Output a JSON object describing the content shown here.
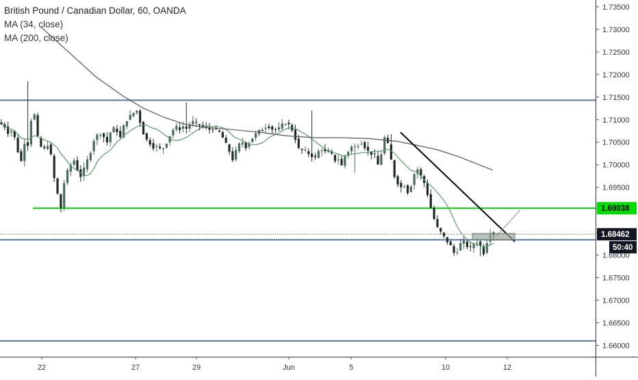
{
  "legend": {
    "title": "British Pound / Canadian Dollar, 60, OANDA",
    "ma_fast": "MA (34, close)",
    "ma_slow": "MA (200, close)"
  },
  "colors": {
    "up_candle": "#4a6b5a",
    "down_candle": "#1d2b23",
    "ma_fast": "#5a9a6a",
    "ma_slow": "#555555",
    "level_line": "#5577a0",
    "support_line": "#00dd00",
    "support_label_bg": "#00dd00",
    "price_label_bg": "#131722",
    "trend_line": "#000000"
  },
  "chart_data": {
    "type": "candlestick",
    "symbol": "GBPCAD",
    "timeframe": "60",
    "y_axis": {
      "range": [
        1.6575,
        1.7365
      ],
      "ticks": [
        "1.73500",
        "1.73000",
        "1.72500",
        "1.72000",
        "1.71500",
        "1.71000",
        "1.70500",
        "1.70000",
        "1.69500",
        "1.69000",
        "1.68500",
        "1.68000",
        "1.67500",
        "1.67000",
        "1.66500",
        "1.66000"
      ]
    },
    "x_axis": {
      "ticks": [
        "22",
        "27",
        "29",
        "Jun",
        "5",
        "10",
        "12"
      ]
    },
    "horizontal_levels": [
      1.7143,
      1.6834,
      1.661
    ],
    "support_level": {
      "value": 1.69038,
      "label": "1.69038"
    },
    "current_price": {
      "value": 1.68462,
      "label": "1.68462"
    },
    "countdown": "50:40",
    "trendline": {
      "from": [
        "Jun 7",
        1.7072
      ],
      "to": [
        "Jun 12",
        1.683
      ]
    },
    "forecast_box": {
      "low": 1.6834,
      "high": 1.6848
    },
    "close_path": [
      1.709,
      1.7085,
      1.7072,
      1.7075,
      1.706,
      1.703,
      1.7008,
      1.705,
      1.7045,
      1.71,
      1.711,
      1.706,
      1.704,
      1.7035,
      1.7045,
      1.702,
      1.697,
      1.6935,
      1.6905,
      1.696,
      1.6985,
      1.7,
      1.701,
      1.699,
      1.6975,
      1.699,
      1.701,
      1.703,
      1.7055,
      1.7065,
      1.707,
      1.7062,
      1.705,
      1.7072,
      1.708,
      1.7075,
      1.706,
      1.7085,
      1.71,
      1.7108,
      1.7115,
      1.712,
      1.7095,
      1.707,
      1.7055,
      1.7048,
      1.704,
      1.704,
      1.7035,
      1.7038,
      1.705,
      1.7065,
      1.7078,
      1.7083,
      1.708,
      1.7085,
      1.708,
      1.709,
      1.7095,
      1.709,
      1.7088,
      1.7085,
      1.7082,
      1.7078,
      1.708,
      1.7076,
      1.7072,
      1.706,
      1.7045,
      1.703,
      1.7012,
      1.703,
      1.7045,
      1.705,
      1.704,
      1.705,
      1.706,
      1.7068,
      1.7074,
      1.708,
      1.7085,
      1.7085,
      1.7079,
      1.7078,
      1.708,
      1.7088,
      1.7093,
      1.7088,
      1.7078,
      1.7058,
      1.7035,
      1.7032,
      1.703,
      1.7025,
      1.702,
      1.7015,
      1.703,
      1.7035,
      1.7028,
      1.703,
      1.7022,
      1.701,
      1.7013,
      1.6998,
      1.702,
      1.703,
      1.704,
      1.704,
      1.7045,
      1.705,
      1.704,
      1.703,
      1.7025,
      1.702,
      1.7,
      1.7025,
      1.706,
      1.7045,
      1.701,
      1.6975,
      1.696,
      1.695,
      1.6955,
      1.694,
      1.6955,
      1.698,
      1.699,
      1.6975,
      1.696,
      1.6935,
      1.6905,
      1.688,
      1.686,
      1.685,
      1.684,
      1.683,
      1.682,
      1.6805,
      1.681,
      1.6825,
      1.683,
      1.682,
      1.6815,
      1.6825,
      1.683,
      1.682,
      1.6805,
      1.683,
      1.685,
      1.6846
    ]
  }
}
